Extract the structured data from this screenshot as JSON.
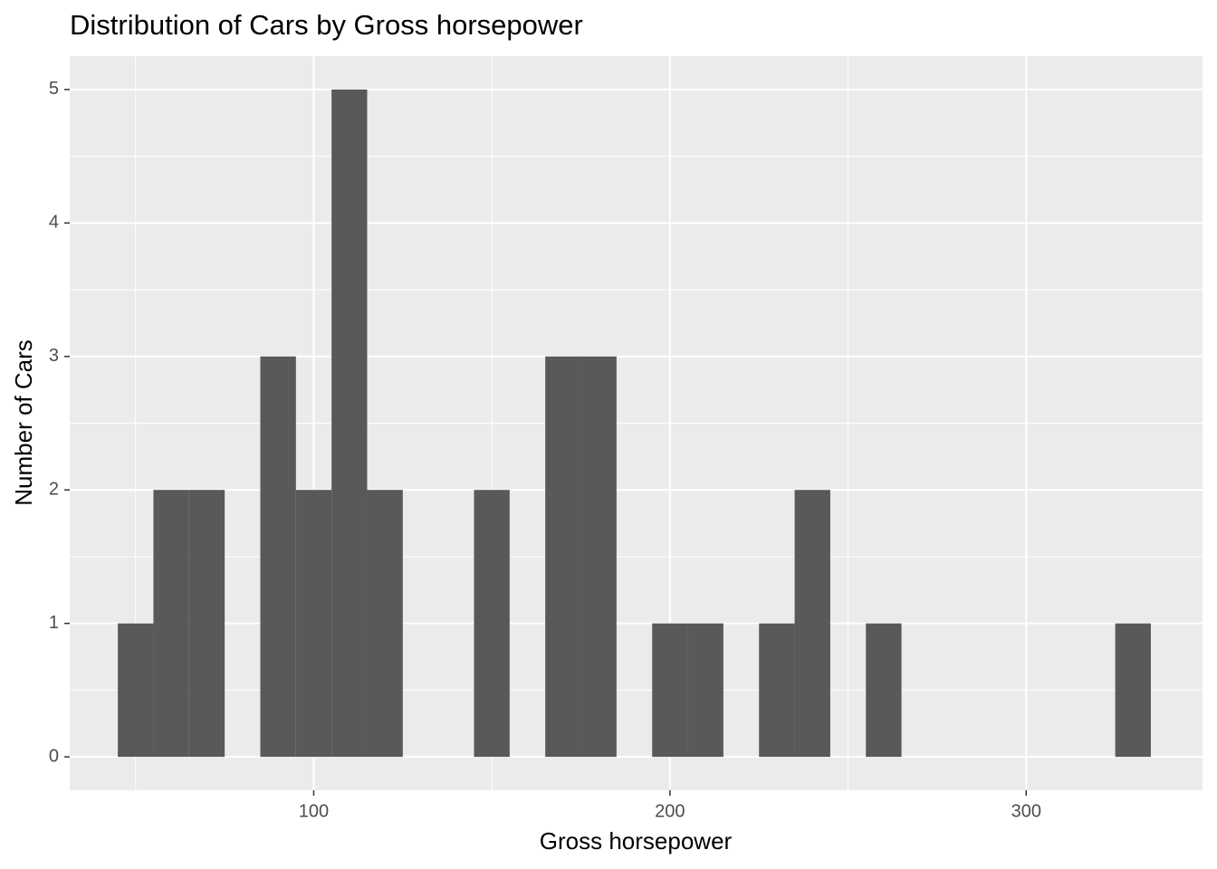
{
  "chart_data": {
    "type": "histogram",
    "title": "Distribution of Cars by Gross horsepower",
    "x_label": "Gross horsepower",
    "y_label": "Number of Cars",
    "bins": [
      45,
      55,
      65,
      75,
      85,
      95,
      105,
      115,
      125,
      135,
      145,
      155,
      165,
      175,
      185,
      195,
      205,
      215,
      225,
      235,
      245,
      255,
      265,
      275,
      285,
      295,
      305,
      315,
      325,
      335
    ],
    "values": [
      1,
      2,
      2,
      0,
      3,
      2,
      5,
      2,
      0,
      0,
      2,
      0,
      3,
      3,
      0,
      1,
      1,
      0,
      1,
      2,
      0,
      1,
      0,
      0,
      0,
      0,
      0,
      0,
      1
    ],
    "color": "#595959",
    "xlim": [
      31.5,
      349.5
    ],
    "xticks": [
      100,
      200,
      300
    ],
    "ylim": [
      -0.25,
      5.25
    ],
    "yticks": [
      0,
      1,
      2,
      3,
      4,
      5
    ],
    "grid": true
  }
}
